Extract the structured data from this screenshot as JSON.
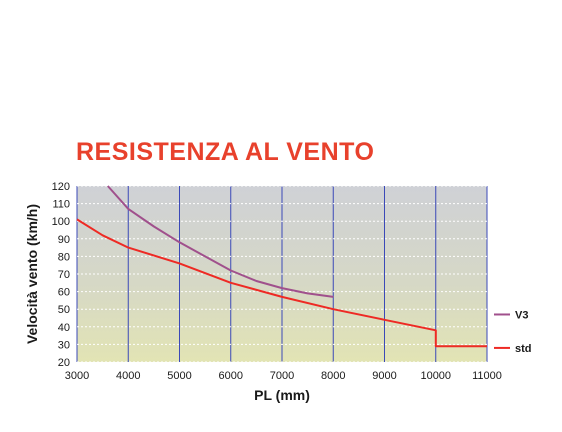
{
  "chart_data": {
    "type": "line",
    "title": "RESISTENZA AL VENTO",
    "xlabel": "PL (mm)",
    "ylabel": "Velocità vento (km/h)",
    "xlim": [
      3000,
      11000
    ],
    "ylim": [
      20,
      120
    ],
    "xticks": [
      "3000",
      "4000",
      "5000",
      "6000",
      "7000",
      "8000",
      "9000",
      "10000",
      "11000"
    ],
    "yticks": [
      "20",
      "30",
      "40",
      "50",
      "60",
      "70",
      "80",
      "90",
      "100",
      "110",
      "120"
    ],
    "grid": true,
    "legend_position": "right",
    "series": [
      {
        "name": "V3",
        "color": "#a0508c",
        "x": [
          3600,
          4000,
          4500,
          5000,
          5500,
          6000,
          6500,
          7000,
          7500,
          8000
        ],
        "y": [
          120,
          107,
          97,
          88,
          80,
          72,
          66,
          62,
          59,
          57
        ]
      },
      {
        "name": "std",
        "color": "#ee2a24",
        "x": [
          3000,
          3500,
          4000,
          5000,
          6000,
          7000,
          8000,
          9000,
          10000,
          10000,
          11000
        ],
        "y": [
          101,
          92,
          85,
          76,
          65,
          57,
          50,
          44,
          38,
          29,
          29
        ]
      }
    ]
  }
}
